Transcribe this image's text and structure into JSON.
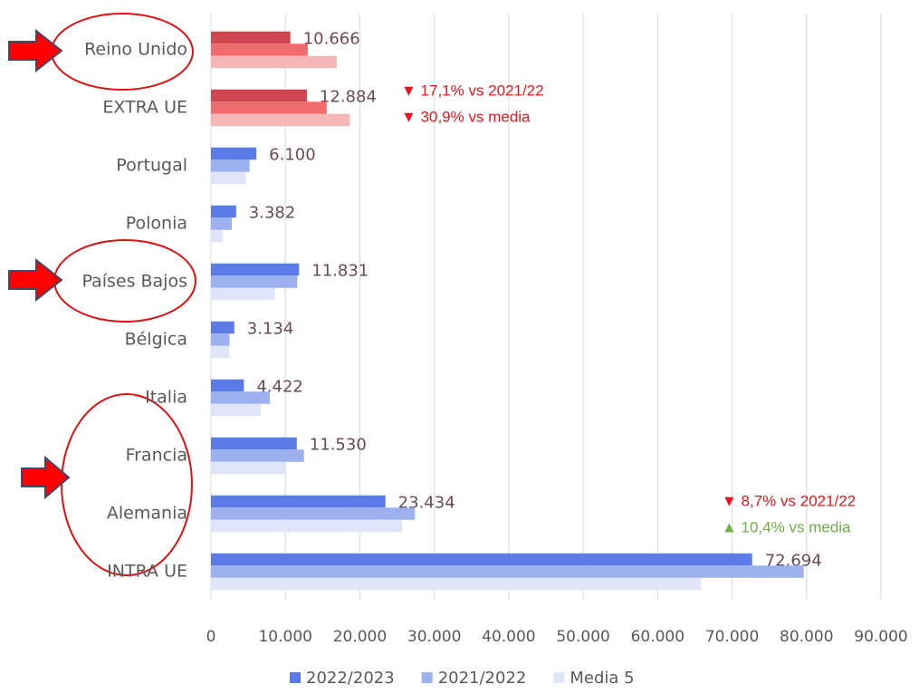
{
  "chart_data": {
    "type": "barh",
    "categories": [
      "Reino Unido",
      "EXTRA UE",
      "Portugal",
      "Polonia",
      "Países Bajos",
      "Bélgica",
      "Italia",
      "Francia",
      "Alemania",
      "INTRA UE"
    ],
    "series": [
      {
        "name": "2022/2023",
        "color": "#5b7be8",
        "colors": [
          "#d0454f",
          "#d0454f",
          "#5b7be8",
          "#5b7be8",
          "#5b7be8",
          "#5b7be8",
          "#5b7be8",
          "#5b7be8",
          "#5b7be8",
          "#5b7be8"
        ],
        "values": [
          10666,
          12884,
          6100,
          3382,
          11831,
          3134,
          4422,
          11530,
          23434,
          72694
        ],
        "value_labels": [
          "10.666",
          "12.884",
          "6.100",
          "3.382",
          "11.831",
          "3.134",
          "4.422",
          "11.530",
          "23.434",
          "72.694"
        ]
      },
      {
        "name": "2021/2022",
        "color": "#9db0ef",
        "colors": [
          "#f06b6b",
          "#f06b6b",
          "#9db0ef",
          "#9db0ef",
          "#9db0ef",
          "#9db0ef",
          "#9db0ef",
          "#9db0ef",
          "#9db0ef",
          "#9db0ef"
        ],
        "values": [
          13000,
          15541,
          5200,
          2800,
          11600,
          2500,
          7900,
          12500,
          27400,
          79621
        ]
      },
      {
        "name": "Media 5",
        "color": "#dfe6f7",
        "colors": [
          "#f7b6b6",
          "#f7b6b6",
          "#dfe6f7",
          "#dfe6f7",
          "#dfe6f7",
          "#dfe6f7",
          "#dfe6f7",
          "#dfe6f7",
          "#dfe6f7",
          "#dfe6f7"
        ],
        "values": [
          16900,
          18645,
          4700,
          1600,
          8600,
          2500,
          6700,
          10100,
          25700,
          65846
        ]
      }
    ],
    "xlim": [
      0,
      90000
    ],
    "xticks": [
      0,
      {
        "value": 10000,
        "label": "10.000"
      },
      {
        "value": 20000,
        "label": "20.000"
      },
      {
        "value": 30000,
        "label": "30.000"
      },
      {
        "value": 40000,
        "label": "40.000"
      },
      {
        "value": 50000,
        "label": "50.000"
      },
      {
        "value": 60000,
        "label": "60.000"
      },
      {
        "value": 70000,
        "label": "70.000"
      },
      {
        "value": 80000,
        "label": "80.000"
      },
      {
        "value": 90000,
        "label": "90.000"
      }
    ],
    "grid": true,
    "legend": "bottom",
    "annotations": [
      {
        "text": "▼ 17,1% vs 2021/22",
        "color": "#e8141c"
      },
      {
        "text": "▼ 30,9% vs media",
        "color": "#e8141c"
      },
      {
        "text": "▼ 8,7% vs 2021/22",
        "color": "#e8141c"
      },
      {
        "text": "▲ 10,4% vs media",
        "color": "#70ad47"
      }
    ]
  }
}
